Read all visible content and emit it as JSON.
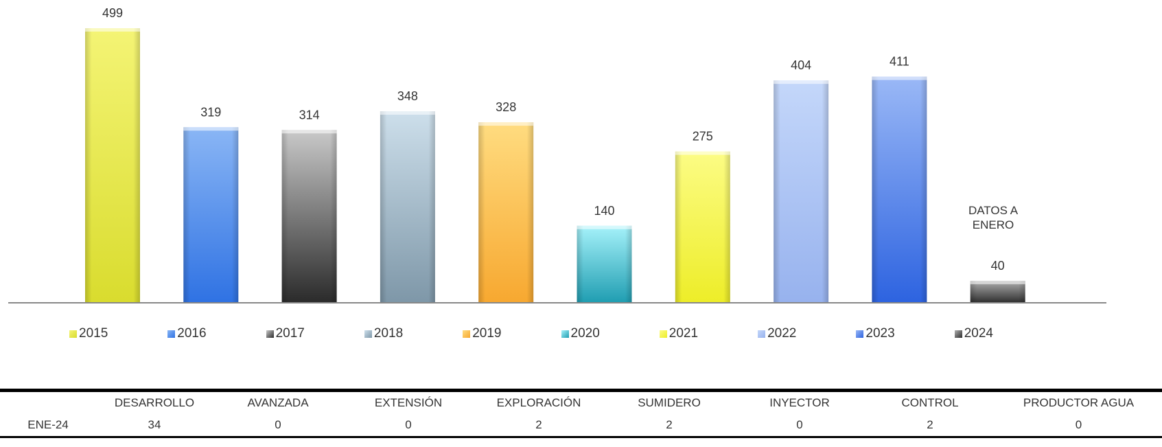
{
  "chart_data": {
    "type": "bar",
    "categories": [
      "2015",
      "2016",
      "2017",
      "2018",
      "2019",
      "2020",
      "2021",
      "2022",
      "2023",
      "2024"
    ],
    "values": [
      499,
      319,
      314,
      348,
      328,
      140,
      275,
      404,
      411,
      40
    ],
    "ylim": [
      0,
      520
    ],
    "grid": false,
    "legend": "bottom",
    "annotation": "DATOS A ENERO",
    "colors": [
      [
        "#f4f475",
        "#d9dc2e"
      ],
      [
        "#8ab6f5",
        "#2f72e3"
      ],
      [
        "#c9c9c9",
        "#2a2a2a"
      ],
      [
        "#cddfeb",
        "#7e97a8"
      ],
      [
        "#ffdc80",
        "#f7a830"
      ],
      [
        "#a6f2fa",
        "#1f9db1"
      ],
      [
        "#fcfc85",
        "#eded28"
      ],
      [
        "#c4d7fa",
        "#97b2ee"
      ],
      [
        "#9ab8f6",
        "#2d63e0"
      ],
      [
        "#b0b0b0",
        "#2d2d2d"
      ]
    ]
  },
  "table": {
    "headers": [
      "",
      "DESARROLLO",
      "AVANZADA",
      "EXTENSIÓN",
      "EXPLORACIÓN",
      "SUMIDERO",
      "INYECTOR",
      "CONTROL",
      "PRODUCTOR AGUA"
    ],
    "rows": [
      [
        "ENE-24",
        "34",
        "0",
        "0",
        "2",
        "2",
        "0",
        "2",
        "0"
      ]
    ]
  }
}
